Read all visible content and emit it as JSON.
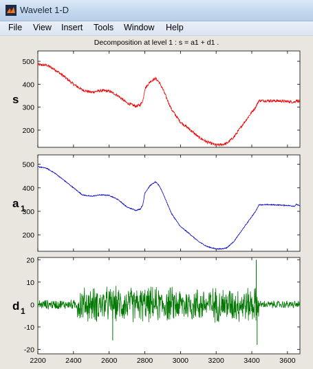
{
  "window": {
    "title": "Wavelet 1-D"
  },
  "menu": [
    "File",
    "View",
    "Insert",
    "Tools",
    "Window",
    "Help"
  ],
  "figure_title": "Decomposition at level 1 : s = a1 + d1 .",
  "colors": {
    "s": "#ee0000",
    "a": "#0000cc",
    "d": "#007700",
    "figure_bg": "#e9e6e0",
    "title_bar": "#c5d9ef"
  },
  "chart_data": [
    {
      "type": "line",
      "name": "s",
      "ylabel": "s",
      "xlim": [
        2200,
        3670
      ],
      "ylim": [
        125,
        545
      ],
      "yticks": [
        200,
        300,
        400,
        500
      ],
      "color": "#ee0000",
      "noise": 6,
      "x": [
        2200,
        2250,
        2300,
        2350,
        2400,
        2450,
        2500,
        2550,
        2600,
        2650,
        2700,
        2750,
        2775,
        2790,
        2800,
        2830,
        2860,
        2880,
        2900,
        2950,
        3000,
        3050,
        3100,
        3150,
        3200,
        3230,
        3260,
        3300,
        3350,
        3400,
        3420,
        3440,
        3500,
        3550,
        3600,
        3640,
        3650,
        3670
      ],
      "values": [
        485,
        483,
        462,
        432,
        400,
        375,
        365,
        372,
        370,
        350,
        318,
        304,
        310,
        330,
        380,
        412,
        425,
        410,
        380,
        290,
        235,
        205,
        170,
        148,
        135,
        137,
        142,
        170,
        225,
        278,
        298,
        328,
        328,
        327,
        325,
        322,
        330,
        322
      ]
    },
    {
      "type": "line",
      "name": "a1",
      "ylabel": "a1",
      "xlim": [
        2200,
        3670
      ],
      "ylim": [
        130,
        540
      ],
      "yticks": [
        200,
        300,
        400,
        500
      ],
      "color": "#0000cc",
      "noise": 2,
      "x": [
        2200,
        2250,
        2300,
        2350,
        2400,
        2450,
        2500,
        2550,
        2600,
        2650,
        2700,
        2750,
        2775,
        2790,
        2800,
        2830,
        2860,
        2880,
        2900,
        2950,
        3000,
        3050,
        3100,
        3150,
        3200,
        3230,
        3260,
        3300,
        3350,
        3400,
        3420,
        3440,
        3500,
        3550,
        3600,
        3640,
        3650,
        3670
      ],
      "values": [
        490,
        483,
        460,
        430,
        400,
        370,
        364,
        370,
        368,
        350,
        318,
        304,
        310,
        330,
        378,
        410,
        425,
        410,
        380,
        290,
        235,
        205,
        172,
        150,
        140,
        140,
        145,
        172,
        225,
        278,
        298,
        328,
        328,
        327,
        325,
        322,
        330,
        322
      ]
    },
    {
      "type": "line",
      "name": "d1",
      "ylabel": "d1",
      "xlim": [
        2200,
        3670
      ],
      "ylim": [
        -22,
        21
      ],
      "yticks": [
        -20,
        -10,
        0,
        10,
        20
      ],
      "xticks": [
        2200,
        2400,
        2600,
        2800,
        3000,
        3200,
        3400,
        3600
      ],
      "color": "#007700",
      "amplitude": {
        "quiet_start": 2.5,
        "active": 9,
        "quiet_end": 2
      },
      "active_range": [
        2420,
        3440
      ],
      "spikes": [
        {
          "x": 3425,
          "value": 20
        },
        {
          "x": 3430,
          "value": -18
        },
        {
          "x": 2620,
          "value": -16
        }
      ]
    }
  ]
}
